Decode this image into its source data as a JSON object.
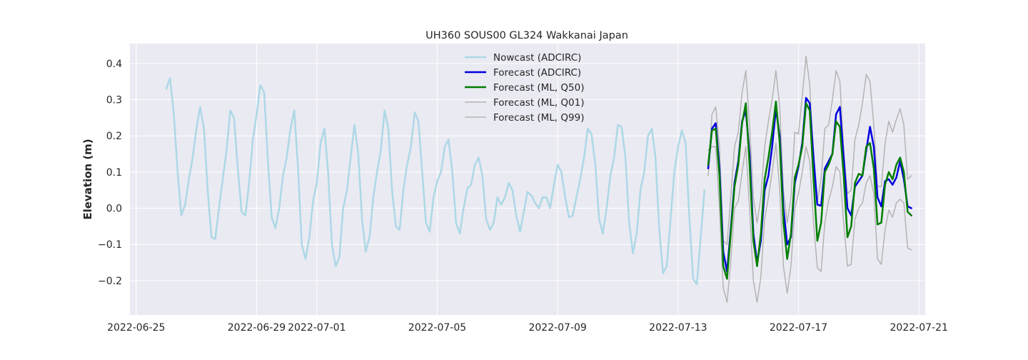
{
  "chart_data": {
    "type": "line",
    "title": "UH360 SOUS00 GL324 Wakkanai Japan",
    "xlabel": "",
    "ylabel": "Elevation (m)",
    "x_ticks": [
      "2022-06-25",
      "2022-06-29",
      "2022-07-01",
      "2022-07-05",
      "2022-07-09",
      "2022-07-13",
      "2022-07-17",
      "2022-07-21"
    ],
    "y_ticks": [
      "−0.2",
      "−0.1",
      "0.0",
      "0.1",
      "0.2",
      "0.3",
      "0.4"
    ],
    "xlim": [
      "2022-06-24T19:00",
      "2022-07-21T05:00"
    ],
    "ylim": [
      -0.295,
      0.455
    ],
    "grid": true,
    "legend_position": "top-center",
    "series": [
      {
        "name": "Nowcast (ADCIRC)",
        "color": "#add8e6",
        "width": 2.5,
        "start": "2022-06-26T00:00",
        "step_hours": 3,
        "values": [
          0.33,
          0.36,
          0.26,
          0.1,
          -0.02,
          0.01,
          0.08,
          0.14,
          0.22,
          0.28,
          0.22,
          0.05,
          -0.08,
          -0.085,
          0.0,
          0.08,
          0.16,
          0.27,
          0.25,
          0.11,
          -0.01,
          -0.02,
          0.07,
          0.19,
          0.26,
          0.34,
          0.32,
          0.13,
          -0.025,
          -0.055,
          0.0,
          0.09,
          0.14,
          0.22,
          0.27,
          0.11,
          -0.1,
          -0.14,
          -0.08,
          0.02,
          0.07,
          0.18,
          0.22,
          0.1,
          -0.1,
          -0.16,
          -0.135,
          0.0,
          0.05,
          0.14,
          0.23,
          0.15,
          -0.03,
          -0.12,
          -0.08,
          0.03,
          0.1,
          0.16,
          0.27,
          0.22,
          0.05,
          -0.05,
          -0.06,
          0.05,
          0.12,
          0.17,
          0.265,
          0.24,
          0.1,
          -0.04,
          -0.065,
          0.03,
          0.075,
          0.1,
          0.17,
          0.19,
          0.1,
          -0.04,
          -0.07,
          0.0,
          0.055,
          0.065,
          0.12,
          0.14,
          0.09,
          -0.03,
          -0.06,
          -0.04,
          0.03,
          0.01,
          0.03,
          0.07,
          0.05,
          -0.02,
          -0.065,
          -0.01,
          0.045,
          0.035,
          0.015,
          0.0,
          0.03,
          0.03,
          0.0,
          0.065,
          0.12,
          0.1,
          0.03,
          -0.025,
          -0.02,
          0.03,
          0.08,
          0.14,
          0.22,
          0.205,
          0.12,
          -0.03,
          -0.07,
          0.0,
          0.09,
          0.14,
          0.23,
          0.225,
          0.14,
          -0.04,
          -0.125,
          -0.07,
          0.05,
          0.1,
          0.2,
          0.22,
          0.14,
          -0.06,
          -0.18,
          -0.16,
          -0.03,
          0.1,
          0.17,
          0.215,
          0.18,
          -0.03,
          -0.195,
          -0.21,
          -0.08,
          0.05
        ]
      },
      {
        "name": "Forecast (ADCIRC)",
        "color": "#0000dd",
        "width": 2.5,
        "start": "2022-07-14T00:00",
        "step_hours": 3,
        "values": [
          0.11,
          0.22,
          0.235,
          0.11,
          -0.12,
          -0.175,
          -0.06,
          0.07,
          0.13,
          0.24,
          0.27,
          0.15,
          -0.07,
          -0.15,
          -0.09,
          0.05,
          0.09,
          0.17,
          0.275,
          0.2,
          0.0,
          -0.1,
          -0.08,
          0.07,
          0.115,
          0.18,
          0.305,
          0.29,
          0.14,
          0.01,
          0.007,
          0.11,
          0.13,
          0.15,
          0.26,
          0.28,
          0.14,
          0.0,
          -0.02,
          0.06,
          0.075,
          0.09,
          0.16,
          0.225,
          0.17,
          0.03,
          0.005,
          0.075,
          0.08,
          0.065,
          0.085,
          0.13,
          0.08,
          0.005,
          0.0
        ]
      },
      {
        "name": "Forecast (ML, Q50)",
        "color": "#007f00",
        "width": 2.5,
        "start": "2022-07-14T00:00",
        "step_hours": 3,
        "values": [
          0.12,
          0.215,
          0.22,
          0.09,
          -0.16,
          -0.195,
          -0.07,
          0.06,
          0.12,
          0.235,
          0.29,
          0.12,
          -0.09,
          -0.16,
          -0.07,
          0.08,
          0.14,
          0.21,
          0.295,
          0.18,
          -0.04,
          -0.14,
          -0.07,
          0.085,
          0.12,
          0.17,
          0.29,
          0.27,
          0.08,
          -0.09,
          -0.04,
          0.1,
          0.12,
          0.15,
          0.24,
          0.225,
          0.09,
          -0.08,
          -0.05,
          0.07,
          0.095,
          0.09,
          0.17,
          0.18,
          0.11,
          -0.045,
          -0.04,
          0.065,
          0.1,
          0.08,
          0.12,
          0.14,
          0.1,
          -0.01,
          -0.02
        ]
      },
      {
        "name": "Forecast (ML, Q01)",
        "color": "#b4b4b4",
        "width": 1.5,
        "start": "2022-07-14T00:00",
        "step_hours": 3,
        "values": [
          0.16,
          0.17,
          0.17,
          0.0,
          -0.22,
          -0.26,
          -0.15,
          0.0,
          0.02,
          0.1,
          0.17,
          0.0,
          -0.2,
          -0.26,
          -0.19,
          -0.03,
          0.03,
          0.1,
          0.18,
          0.05,
          -0.16,
          -0.235,
          -0.16,
          0.0,
          0.04,
          0.1,
          0.17,
          0.13,
          -0.04,
          -0.165,
          -0.175,
          -0.04,
          0.02,
          0.06,
          0.115,
          0.1,
          -0.04,
          -0.16,
          -0.155,
          -0.03,
          0.0,
          0.015,
          0.07,
          0.09,
          0.04,
          -0.14,
          -0.155,
          -0.06,
          -0.005,
          -0.025,
          0.015,
          0.025,
          0.015,
          -0.11,
          -0.115
        ]
      },
      {
        "name": "Forecast (ML, Q99)",
        "color": "#b4b4b4",
        "width": 1.5,
        "start": "2022-07-14T00:00",
        "step_hours": 3,
        "values": [
          0.09,
          0.26,
          0.28,
          0.17,
          -0.09,
          -0.1,
          0.03,
          0.17,
          0.21,
          0.32,
          0.38,
          0.23,
          0.03,
          -0.04,
          0.03,
          0.17,
          0.24,
          0.3,
          0.38,
          0.28,
          0.05,
          -0.04,
          0.03,
          0.21,
          0.205,
          0.31,
          0.42,
          0.34,
          0.13,
          0.02,
          0.08,
          0.22,
          0.23,
          0.3,
          0.38,
          0.35,
          0.16,
          0.04,
          0.05,
          0.19,
          0.23,
          0.29,
          0.37,
          0.35,
          0.23,
          0.06,
          0.06,
          0.18,
          0.24,
          0.21,
          0.245,
          0.275,
          0.23,
          0.08,
          0.09
        ]
      }
    ]
  }
}
